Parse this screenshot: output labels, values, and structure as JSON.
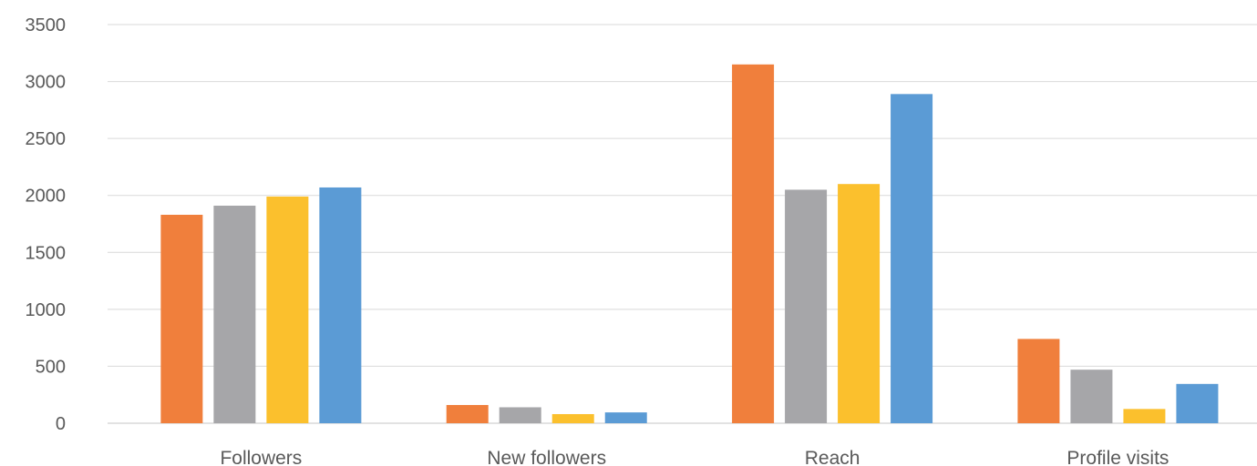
{
  "chart_data": {
    "type": "bar",
    "title": "",
    "xlabel": "",
    "ylabel": "",
    "categories": [
      "Followers",
      "New followers",
      "Reach",
      "Profile visits"
    ],
    "series": [
      {
        "color": "#f07f3c",
        "values": [
          1830,
          160,
          3150,
          740
        ]
      },
      {
        "color": "#a6a6a9",
        "values": [
          1910,
          140,
          2050,
          470
        ]
      },
      {
        "color": "#fbc02d",
        "values": [
          1990,
          80,
          2100,
          125
        ]
      },
      {
        "color": "#5b9bd5",
        "values": [
          2070,
          95,
          2890,
          345
        ]
      }
    ],
    "ylim": [
      0,
      3500
    ],
    "yticks": [
      "0",
      "500",
      "1000",
      "1500",
      "2000",
      "2500",
      "3000",
      "3500"
    ],
    "grid": true,
    "legend": "none"
  }
}
